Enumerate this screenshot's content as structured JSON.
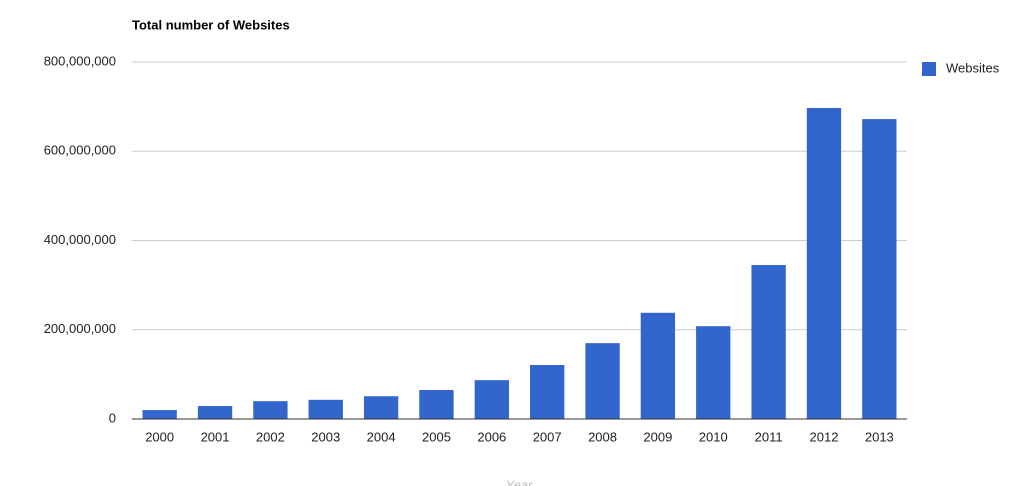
{
  "chart_data": {
    "type": "bar",
    "title": "Total number of Websites",
    "x_label": "Year",
    "categories": [
      "2000",
      "2001",
      "2002",
      "2003",
      "2004",
      "2005",
      "2006",
      "2007",
      "2008",
      "2009",
      "2010",
      "2011",
      "2012",
      "2013"
    ],
    "series": [
      {
        "name": "Websites",
        "color": "#3366cc",
        "values": [
          20000000,
          29000000,
          40000000,
          43000000,
          51000000,
          65000000,
          87000000,
          121000000,
          170000000,
          238000000,
          208000000,
          345000000,
          697000000,
          672000000
        ]
      }
    ],
    "ylim": [
      0,
      800000000
    ],
    "yticks": [
      0,
      {
        "value": 200000000,
        "label": "200,000,000"
      },
      {
        "value": 400000000,
        "label": "400,000,000"
      },
      {
        "value": 600000000,
        "label": "600,000,000"
      },
      {
        "value": 800000000,
        "label": "800,000,000"
      }
    ],
    "grid": true,
    "legend": "right"
  }
}
